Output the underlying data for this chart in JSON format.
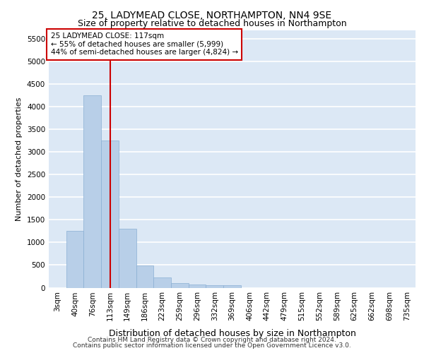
{
  "title": "25, LADYMEAD CLOSE, NORTHAMPTON, NN4 9SE",
  "subtitle": "Size of property relative to detached houses in Northampton",
  "xlabel": "Distribution of detached houses by size in Northampton",
  "ylabel": "Number of detached properties",
  "footer1": "Contains HM Land Registry data © Crown copyright and database right 2024.",
  "footer2": "Contains public sector information licensed under the Open Government Licence v3.0.",
  "annotation_title": "25 LADYMEAD CLOSE: 117sqm",
  "annotation_line1": "← 55% of detached houses are smaller (5,999)",
  "annotation_line2": "44% of semi-detached houses are larger (4,824) →",
  "bar_color": "#b8cfe8",
  "bar_edge_color": "#8aafd4",
  "vline_color": "#cc0000",
  "ann_face": "#ffffff",
  "ann_edge": "#cc0000",
  "bg_color": "#dce8f5",
  "grid_color": "#ffffff",
  "categories": [
    "3sqm",
    "40sqm",
    "76sqm",
    "113sqm",
    "149sqm",
    "186sqm",
    "223sqm",
    "259sqm",
    "296sqm",
    "332sqm",
    "369sqm",
    "406sqm",
    "442sqm",
    "479sqm",
    "515sqm",
    "552sqm",
    "589sqm",
    "625sqm",
    "662sqm",
    "698sqm",
    "735sqm"
  ],
  "values": [
    0,
    1250,
    4250,
    3250,
    1300,
    490,
    225,
    105,
    70,
    55,
    50,
    0,
    0,
    0,
    0,
    0,
    0,
    0,
    0,
    0,
    0
  ],
  "ylim_max": 5700,
  "yticks": [
    0,
    500,
    1000,
    1500,
    2000,
    2500,
    3000,
    3500,
    4000,
    4500,
    5000,
    5500
  ],
  "vline_pos": 3.0,
  "title_fontsize": 10,
  "subtitle_fontsize": 9,
  "ylabel_fontsize": 8,
  "xlabel_fontsize": 9,
  "tick_fontsize": 7.5,
  "footer_fontsize": 6.5
}
